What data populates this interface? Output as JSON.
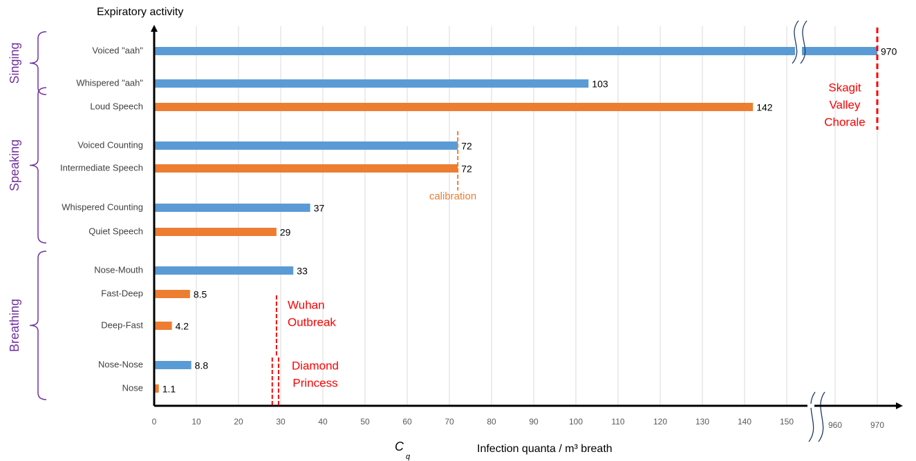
{
  "chart_data": {
    "type": "bar",
    "orientation": "horizontal",
    "y_label": "Expiratory activity",
    "x_symbol": "C",
    "x_symbol_sub": "q",
    "x_label": "Infection quanta / m³ breath",
    "categories": [
      "Voiced \"aah\"",
      "Whispered \"aah\"",
      "Loud Speech",
      "Voiced Counting",
      "Intermediate Speech",
      "Whispered Counting",
      "Quiet Speech",
      "Nose-Mouth",
      "Fast-Deep",
      "Deep-Fast",
      "Nose-Nose",
      "Nose"
    ],
    "values": [
      970,
      103,
      142,
      72,
      72,
      37,
      29,
      33,
      8.5,
      4.2,
      8.8,
      1.1
    ],
    "colors": [
      "#5b9bd5",
      "#5b9bd5",
      "#ed7d31",
      "#5b9bd5",
      "#ed7d31",
      "#5b9bd5",
      "#ed7d31",
      "#5b9bd5",
      "#ed7d31",
      "#ed7d31",
      "#5b9bd5",
      "#ed7d31"
    ],
    "groups": [
      {
        "label": "Singing",
        "start": 0,
        "end": 1
      },
      {
        "label": "Speaking",
        "start": 2,
        "end": 6
      },
      {
        "label": "Breathing",
        "start": 7,
        "end": 11
      }
    ],
    "xlim": [
      0,
      970
    ],
    "x_break": [
      150,
      960
    ],
    "xticks": [
      0,
      10,
      20,
      30,
      40,
      50,
      60,
      70,
      80,
      90,
      100,
      110,
      120,
      130,
      140,
      150,
      960,
      970
    ],
    "grid": true,
    "annotations": [
      {
        "lines": [
          "Skagit",
          "Valley",
          "Chorale"
        ],
        "x": 970,
        "color": "#ff0000"
      },
      {
        "lines": [
          "calibration"
        ],
        "x": 72,
        "color": "#ed7d31"
      },
      {
        "lines": [
          "Wuhan",
          "Outbreak"
        ],
        "x": 29,
        "color": "#ff0000"
      },
      {
        "lines": [
          "Diamond",
          "Princess"
        ],
        "x": [
          28,
          29.5
        ],
        "color": "#ff0000"
      }
    ]
  }
}
